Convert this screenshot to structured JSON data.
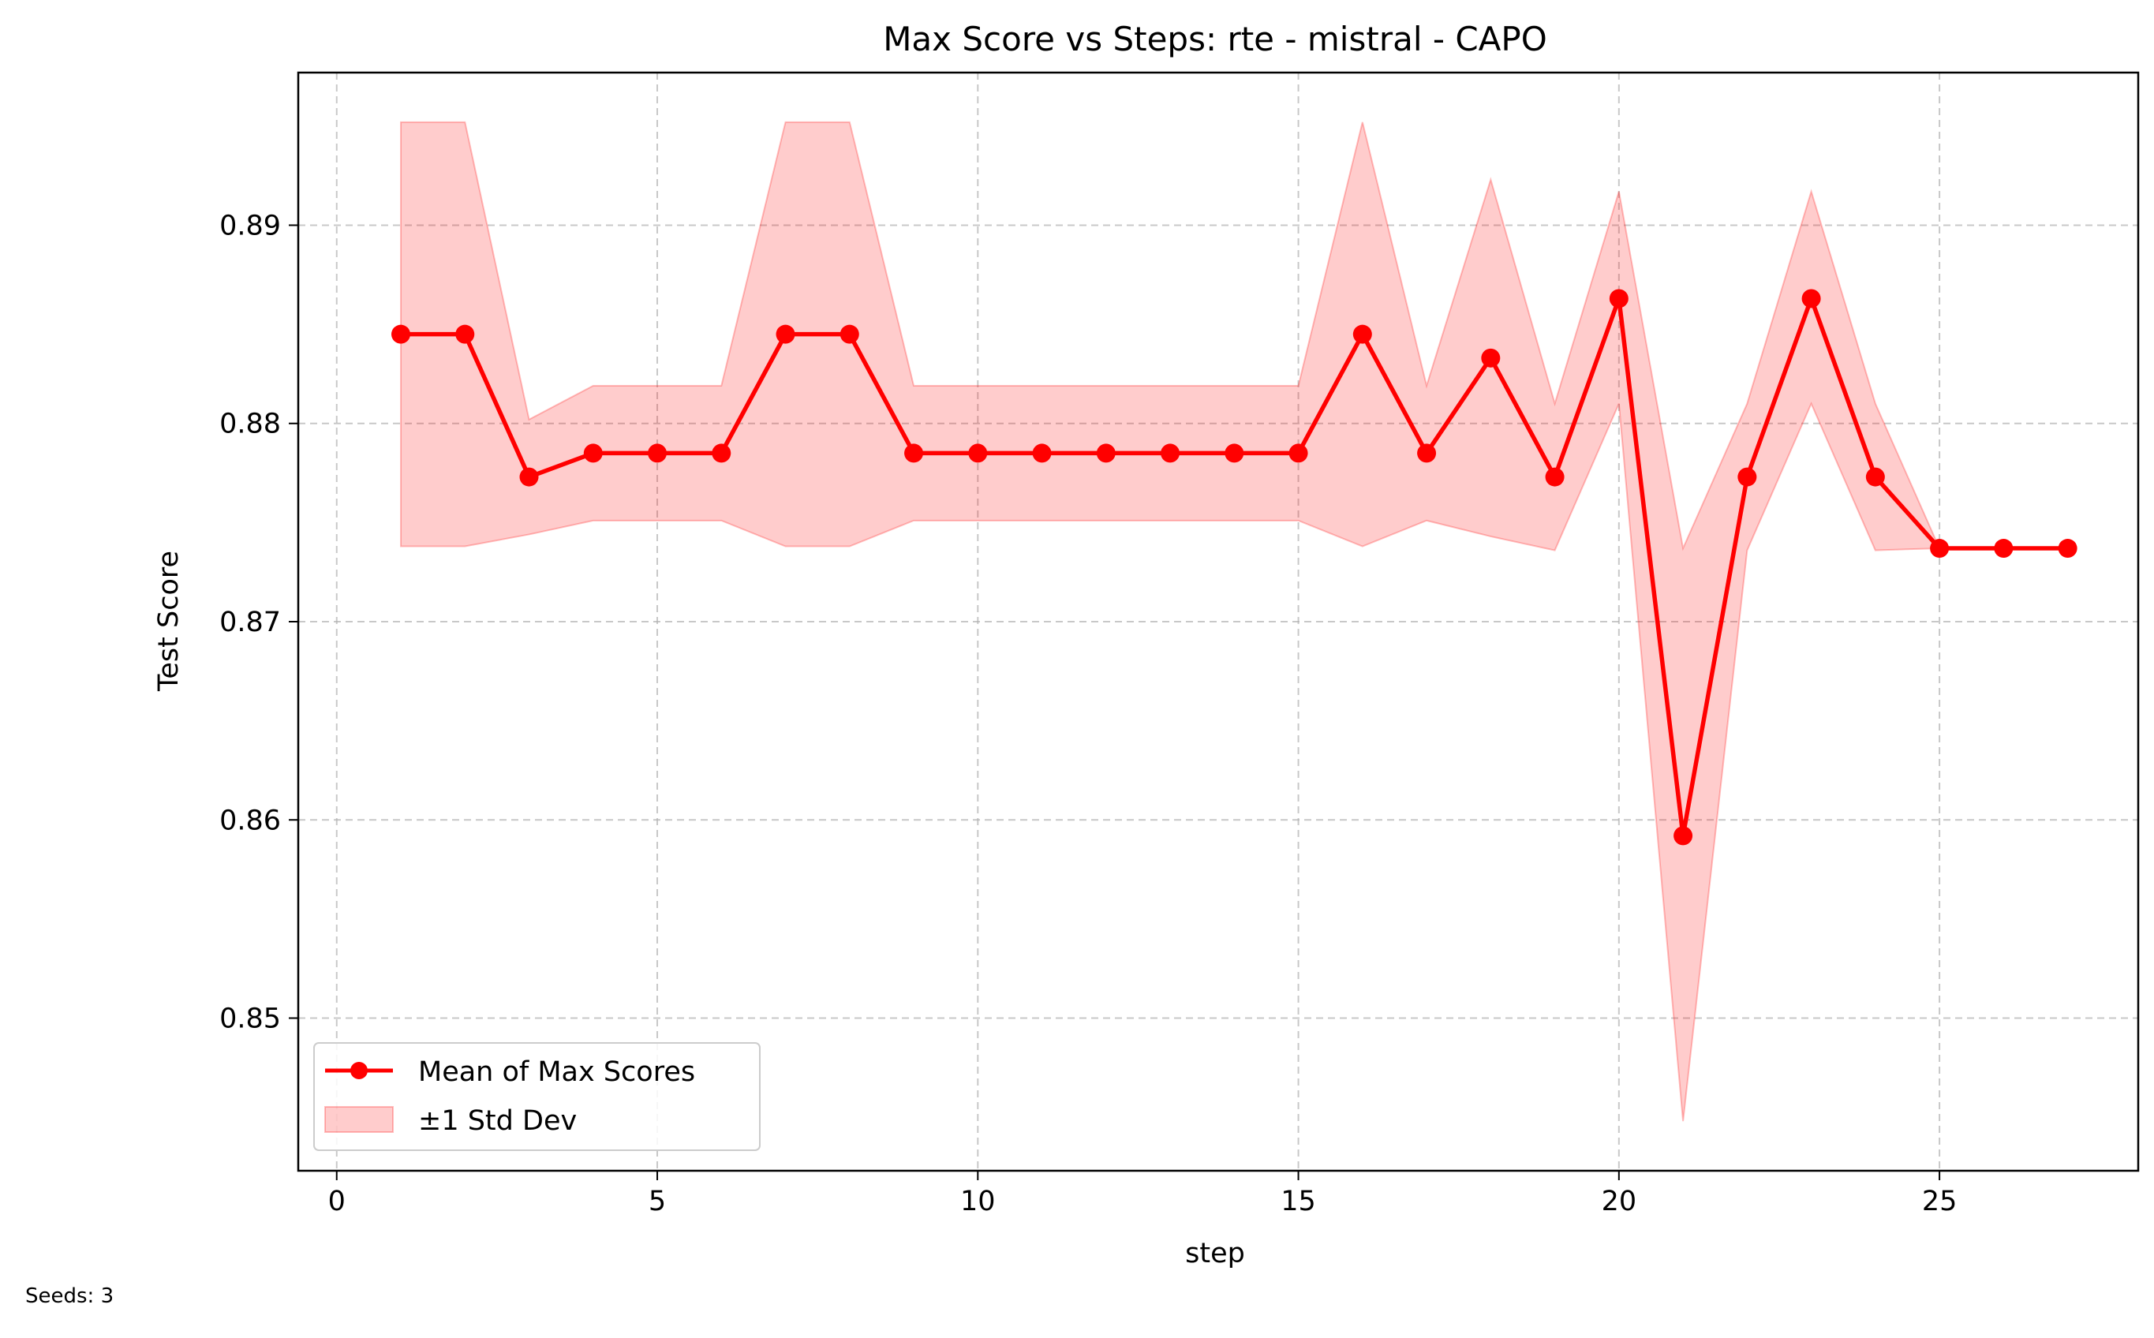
{
  "chart_data": {
    "type": "line",
    "title": "Max Score vs Steps: rte - mistral - CAPO",
    "xlabel": "step",
    "ylabel": "Test Score",
    "xlim": [
      -0.6,
      28.1
    ],
    "ylim": [
      0.8423,
      0.8977
    ],
    "xticks": [
      0,
      5,
      10,
      15,
      20,
      25
    ],
    "yticks": [
      0.85,
      0.86,
      0.87,
      0.88,
      0.89
    ],
    "ytick_labels": [
      "0.85",
      "0.86",
      "0.87",
      "0.88",
      "0.89"
    ],
    "grid": true,
    "legend_position": "lower-left",
    "x": [
      1,
      2,
      3,
      4,
      5,
      6,
      7,
      8,
      9,
      10,
      11,
      12,
      13,
      14,
      15,
      16,
      17,
      18,
      19,
      20,
      21,
      22,
      23,
      24,
      25,
      26,
      27
    ],
    "series": [
      {
        "name": "Mean of Max Scores",
        "color": "#ff0000",
        "marker": "circle",
        "values": [
          0.8845,
          0.8845,
          0.8773,
          0.8785,
          0.8785,
          0.8785,
          0.8845,
          0.8845,
          0.8785,
          0.8785,
          0.8785,
          0.8785,
          0.8785,
          0.8785,
          0.8785,
          0.8845,
          0.8785,
          0.8833,
          0.8773,
          0.8863,
          0.8592,
          0.8773,
          0.8863,
          0.8773,
          0.8737,
          0.8737,
          0.8737
        ]
      }
    ],
    "band": {
      "name": "±1 Std Dev",
      "color": "#ff0000",
      "opacity": 0.2,
      "upper": [
        0.8952,
        0.8952,
        0.8802,
        0.8819,
        0.8819,
        0.8819,
        0.8952,
        0.8952,
        0.8819,
        0.8819,
        0.8819,
        0.8819,
        0.8819,
        0.8819,
        0.8819,
        0.8952,
        0.8819,
        0.8923,
        0.881,
        0.8917,
        0.8737,
        0.881,
        0.8917,
        0.881,
        0.8737,
        0.8737,
        0.8737
      ],
      "lower": [
        0.8738,
        0.8738,
        0.8744,
        0.8751,
        0.8751,
        0.8751,
        0.8738,
        0.8738,
        0.8751,
        0.8751,
        0.8751,
        0.8751,
        0.8751,
        0.8751,
        0.8751,
        0.8738,
        0.8751,
        0.8743,
        0.8736,
        0.881,
        0.8448,
        0.8736,
        0.881,
        0.8736,
        0.8737,
        0.8737,
        0.8737
      ]
    },
    "footnote": "Seeds: 3"
  }
}
